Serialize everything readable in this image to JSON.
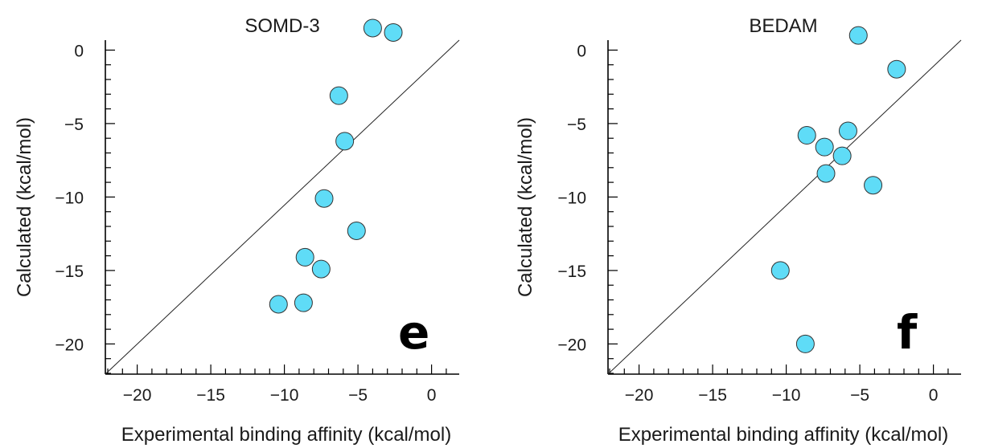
{
  "chart_data": [
    {
      "type": "scatter",
      "title": "SOMD-3",
      "xlabel": "Experimental binding affinity (kcal/mol)",
      "ylabel": "Calculated (kcal/mol)",
      "xlim": [
        -22,
        2
      ],
      "ylim": [
        -22,
        2
      ],
      "xticks": [
        -20,
        -15,
        -10,
        -5,
        0
      ],
      "yticks": [
        -20,
        -15,
        -10,
        -5,
        0
      ],
      "x_tick_labels": [
        "−20",
        "−15",
        "−10",
        "−5",
        "0"
      ],
      "y_tick_labels": [
        "−20",
        "−15",
        "−10",
        "−5",
        "0"
      ],
      "minor_tick_step": 1,
      "identity_line": true,
      "grid": false,
      "panel_label": "e",
      "marker_color": "#5fdcf7",
      "points": [
        {
          "x": -4.0,
          "y": 1.5
        },
        {
          "x": -2.6,
          "y": 1.2
        },
        {
          "x": -6.3,
          "y": -3.1
        },
        {
          "x": -5.9,
          "y": -6.2
        },
        {
          "x": -7.3,
          "y": -10.1
        },
        {
          "x": -5.1,
          "y": -12.3
        },
        {
          "x": -8.6,
          "y": -14.1
        },
        {
          "x": -7.5,
          "y": -14.9
        },
        {
          "x": -10.4,
          "y": -17.3
        },
        {
          "x": -8.7,
          "y": -17.2
        }
      ]
    },
    {
      "type": "scatter",
      "title": "BEDAM",
      "xlabel": "Experimental binding affinity (kcal/mol)",
      "ylabel": "Calculated (kcal/mol)",
      "xlim": [
        -22,
        2
      ],
      "ylim": [
        -22,
        2
      ],
      "xticks": [
        -20,
        -15,
        -10,
        -5,
        0
      ],
      "yticks": [
        -20,
        -15,
        -10,
        -5,
        0
      ],
      "x_tick_labels": [
        "−20",
        "−15",
        "−10",
        "−5",
        "0"
      ],
      "y_tick_labels": [
        "−20",
        "−15",
        "−10",
        "−5",
        "0"
      ],
      "minor_tick_step": 1,
      "identity_line": true,
      "grid": false,
      "panel_label": "f",
      "marker_color": "#5fdcf7",
      "points": [
        {
          "x": -5.1,
          "y": 1.0
        },
        {
          "x": -2.5,
          "y": -1.3
        },
        {
          "x": -8.6,
          "y": -5.8
        },
        {
          "x": -5.8,
          "y": -5.5
        },
        {
          "x": -7.4,
          "y": -6.6
        },
        {
          "x": -6.2,
          "y": -7.2
        },
        {
          "x": -7.3,
          "y": -8.4
        },
        {
          "x": -4.1,
          "y": -9.2
        },
        {
          "x": -10.4,
          "y": -15.0
        },
        {
          "x": -8.7,
          "y": -20.0
        }
      ]
    }
  ]
}
